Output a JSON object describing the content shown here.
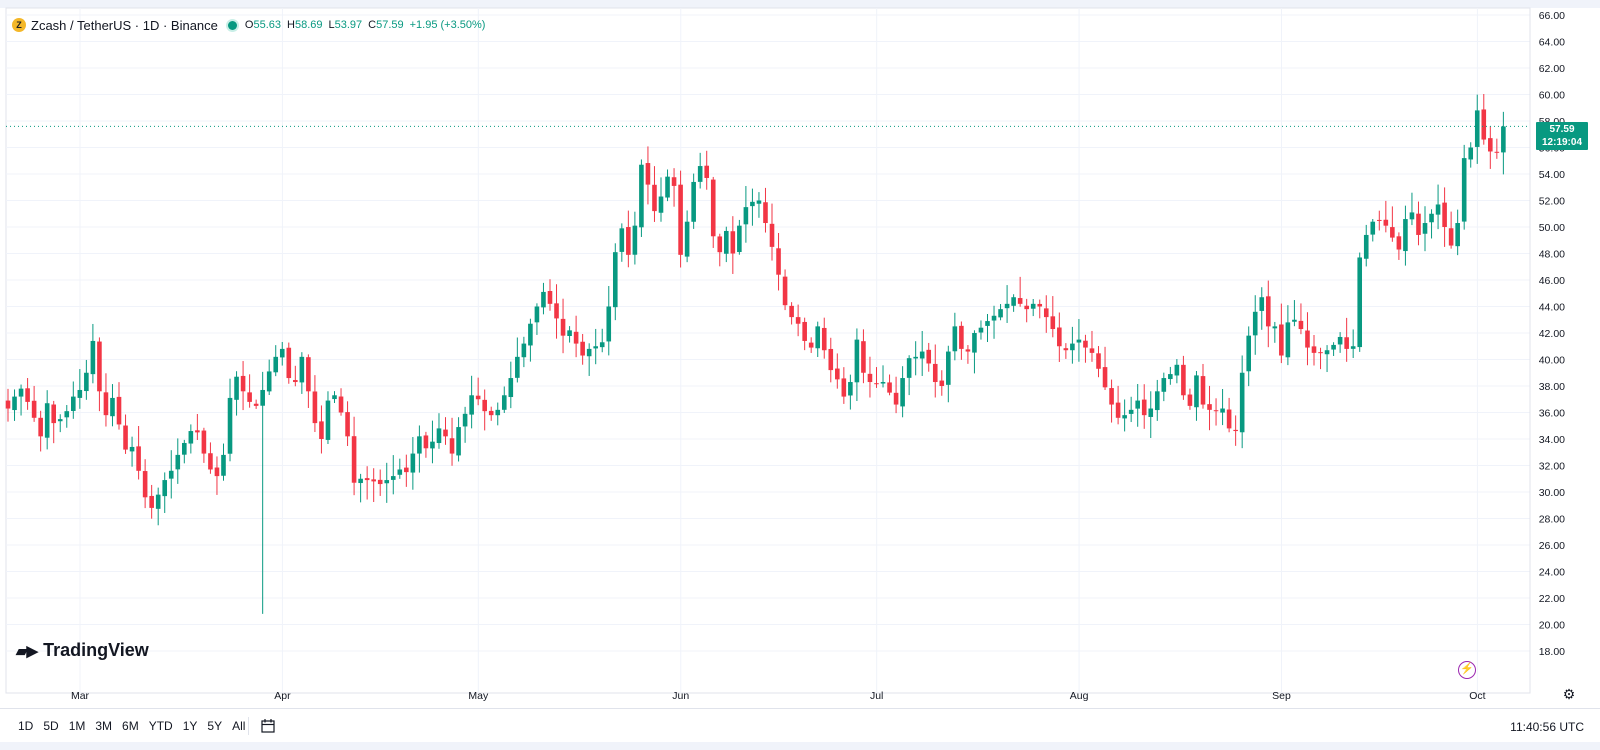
{
  "header": {
    "symbol": "Zcash / TetherUS · 1D · Binance",
    "o_label": "O",
    "o_value": "55.63",
    "h_label": "H",
    "h_value": "58.69",
    "l_label": "L",
    "l_value": "53.97",
    "c_label": "C",
    "c_value": "57.59",
    "change": "+1.95 (+3.50%)"
  },
  "watermark": {
    "logo_text": "TradingView",
    "logo_mark": "𝟏𝟕"
  },
  "last_price": {
    "price": "57.59",
    "countdown": "12:19:04"
  },
  "range_buttons": [
    "1D",
    "5D",
    "1M",
    "3M",
    "6M",
    "YTD",
    "1Y",
    "5Y",
    "All"
  ],
  "clock": "11:40:56 UTC",
  "colors": {
    "up": "#089981",
    "down": "#f23645",
    "grid": "#f0f3fa",
    "text": "#131722"
  },
  "chart_data": {
    "type": "candlestick",
    "title": "Zcash / TetherUS · 1D · Binance",
    "xlabel": "",
    "ylabel": "",
    "ylim": [
      17,
      66
    ],
    "y_ticks": [
      "18.00",
      "20.00",
      "22.00",
      "24.00",
      "26.00",
      "28.00",
      "30.00",
      "32.00",
      "34.00",
      "36.00",
      "38.00",
      "40.00",
      "42.00",
      "44.00",
      "46.00",
      "48.00",
      "50.00",
      "52.00",
      "54.00",
      "56.00",
      "58.00",
      "60.00",
      "62.00",
      "64.00",
      "66.00"
    ],
    "x_ticks": [
      {
        "label": "Mar",
        "day": 10
      },
      {
        "label": "Apr",
        "day": 41
      },
      {
        "label": "May",
        "day": 71
      },
      {
        "label": "Jun",
        "day": 102
      },
      {
        "label": "Jul",
        "day": 132
      },
      {
        "label": "Aug",
        "day": 163
      },
      {
        "label": "Sep",
        "day": 194
      },
      {
        "label": "Oct",
        "day": 224
      }
    ],
    "first_day": -1,
    "close_series": [
      36.3,
      37.2,
      37.8,
      36.8,
      35.6,
      34.2,
      36.7,
      35.2,
      35.5,
      36.1,
      37.2,
      37.7,
      39.0,
      41.4,
      37.6,
      35.8,
      37.1,
      35.1,
      33.2,
      33.4,
      31.6,
      29.6,
      28.8,
      29.8,
      30.9,
      31.6,
      32.8,
      33.7,
      34.6,
      34.5,
      32.9,
      31.7,
      31.2,
      32.8,
      37.1,
      38.7,
      37.6,
      36.8,
      36.5,
      37.7,
      39.1,
      40.2,
      40.8,
      38.6,
      38.3,
      40.2,
      37.6,
      35.2,
      34.0,
      36.9,
      37.3,
      36.0,
      34.2,
      30.7,
      31.0,
      30.9,
      30.8,
      30.6,
      30.9,
      31.2,
      31.7,
      31.5,
      32.9,
      34.2,
      33.3,
      33.8,
      34.8,
      34.2,
      32.9,
      34.9,
      35.9,
      37.3,
      37.0,
      36.1,
      35.8,
      36.2,
      37.3,
      38.6,
      40.2,
      41.2,
      42.7,
      44.0,
      45.1,
      44.2,
      43.1,
      41.8,
      42.2,
      41.2,
      40.3,
      40.8,
      41.0,
      41.3,
      44.0,
      48.1,
      49.9,
      47.9,
      50.1,
      54.7,
      53.2,
      51.2,
      52.3,
      53.8,
      53.1,
      47.9,
      50.4,
      53.4,
      54.6,
      53.7,
      49.3,
      48.1,
      49.7,
      48.0,
      50.1,
      51.5,
      51.9,
      52.0,
      50.3,
      48.5,
      46.4,
      44.1,
      43.2,
      42.7,
      41.4,
      40.9,
      42.5,
      40.7,
      39.2,
      38.5,
      37.2,
      38.3,
      41.5,
      39.0,
      38.3,
      38.2,
      38.3,
      37.5,
      36.6,
      38.6,
      40.1,
      40.2,
      40.6,
      39.7,
      38.3,
      38.0,
      40.6,
      42.5,
      40.8,
      40.6,
      42.0,
      42.4,
      42.9,
      43.3,
      43.8,
      44.2,
      44.7,
      44.2,
      43.8,
      44.2,
      44.0,
      43.2,
      42.3,
      41.0,
      40.7,
      41.2,
      41.5,
      40.9,
      40.5,
      39.3,
      37.9,
      36.6,
      35.6,
      35.8,
      36.2,
      36.9,
      35.8,
      36.3,
      37.6,
      38.6,
      38.9,
      39.6,
      37.3,
      36.5,
      38.8,
      36.6,
      36.2,
      36.1,
      36.3,
      34.8,
      34.6,
      39.0,
      41.8,
      43.6,
      44.7,
      42.5,
      42.5,
      40.3,
      42.8,
      43.0,
      42.3,
      40.9,
      40.5,
      40.5,
      40.7,
      41.1,
      41.7,
      40.8,
      41.0,
      47.7,
      49.4,
      50.4,
      50.5,
      50.1,
      49.2,
      48.3,
      50.6,
      51.1,
      49.4,
      50.3,
      51.0,
      51.7,
      50.0,
      48.6,
      50.3,
      55.2,
      56.0,
      58.8,
      56.6,
      55.7,
      55.6,
      57.59
    ],
    "highlighted_candles": [
      {
        "day": 182,
        "note": "deep wick"
      },
      {
        "day": 39,
        "note": "spike low 20.8"
      }
    ]
  }
}
